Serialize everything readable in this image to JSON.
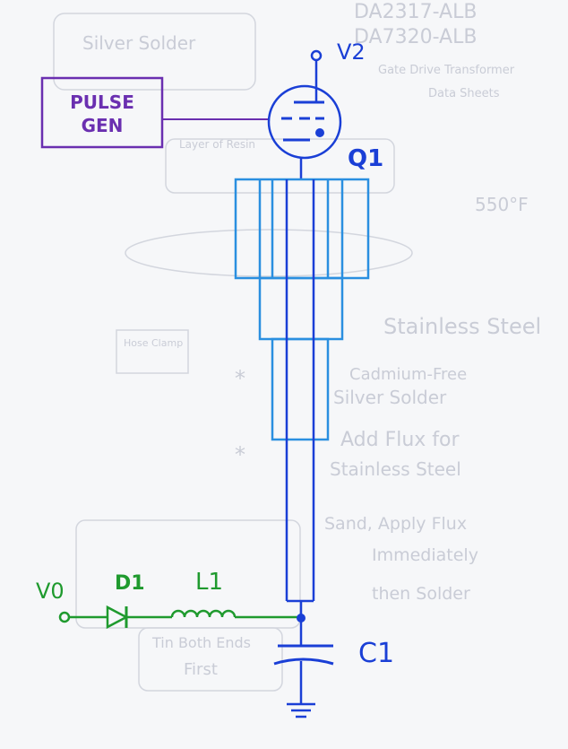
{
  "labels": {
    "pulse_gen_line1": "PULSE",
    "pulse_gen_line2": "GEN",
    "v2": "V2",
    "q1": "Q1",
    "v0": "V0",
    "d1": "D1",
    "l1": "L1",
    "c1": "C1"
  },
  "background_notes": [
    "DA2317-ALB",
    "DA7320-ALB",
    "Gate Drive Transformer",
    "Data Sheets",
    "Silver Solder",
    "Layer of Resin",
    "550°F",
    "Stainless Steel",
    "Cadmium-Free",
    "Silver Solder",
    "Add Flux for",
    "Stainless Steel",
    "Sand, Apply Flux",
    "Immediately",
    "then Solder",
    "Tin Both Ends",
    "First",
    "Hose Clamp"
  ],
  "colors": {
    "ink_blue": "#1a3fd6",
    "ink_lightblue": "#2a8fe0",
    "ink_purple": "#6a2fb0",
    "ink_green": "#1f9a2e",
    "ghost": "#c9ccd6"
  }
}
